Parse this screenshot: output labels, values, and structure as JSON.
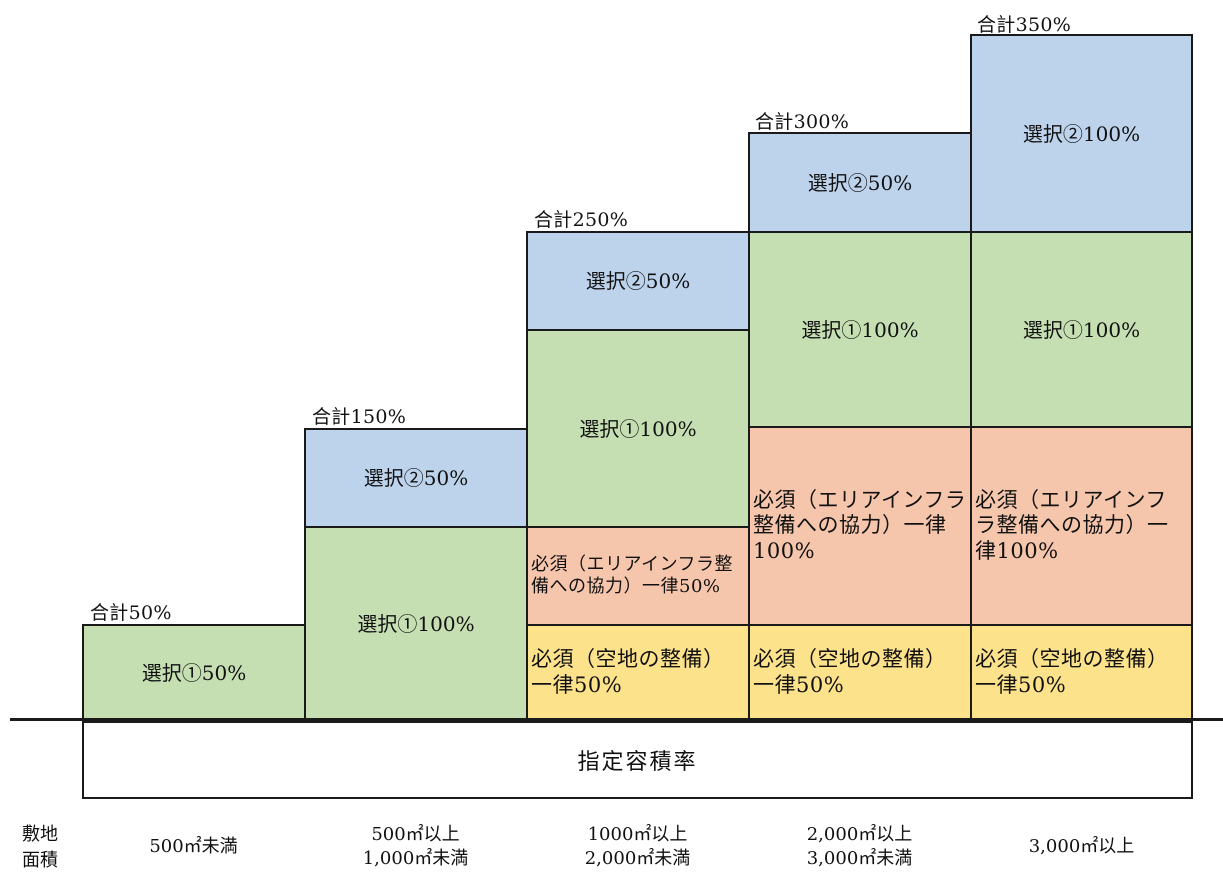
{
  "totals": [
    "合計50%",
    "合計150%",
    "合計250%",
    "合計300%",
    "合計350%"
  ],
  "blocks": {
    "sel1_50": "選択①50%",
    "sel2_50": "選択②50%",
    "sel1_100": "選択①100%",
    "sel2_100": "選択②100%",
    "infra_50": "必須（エリアインフラ整備への協力）一律50%",
    "infra_100": "必須（エリアインフラ整備への協力）一律100%",
    "open_50": "必須（空地の整備）一律50%"
  },
  "base_label": "指定容積率",
  "row_label": [
    "敷地",
    "面積"
  ],
  "areas": [
    [
      "500㎡未満"
    ],
    [
      "500㎡以上",
      "1,000㎡未満"
    ],
    [
      "1000㎡以上",
      "2,000㎡未満"
    ],
    [
      "2,000㎡以上",
      "3,000㎡未満"
    ],
    [
      "3,000㎡以上"
    ]
  ],
  "colors": {
    "sel2": "#bdd3ec",
    "sel1": "#c5deb2",
    "infra": "#f6c6ac",
    "open": "#fde28c"
  }
}
